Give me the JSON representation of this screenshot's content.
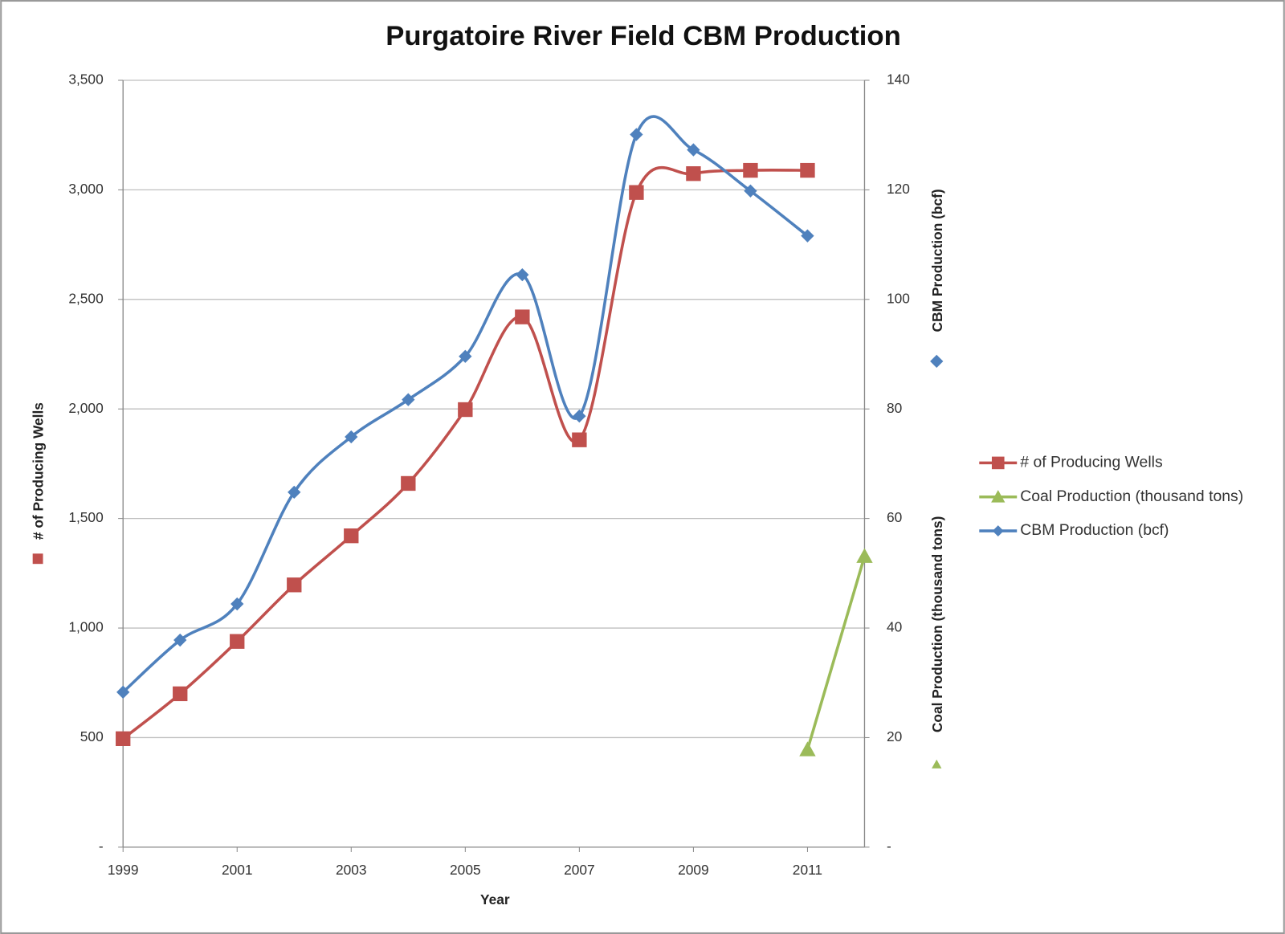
{
  "chart_data": {
    "type": "line",
    "title": "Purgatoire River Field CBM Production",
    "xlabel": "Year",
    "ylabel": "# of Producing Wells",
    "y2labels": [
      "CBM Production (bcf)",
      "Coal Production  (thousand tons)"
    ],
    "x": [
      1999,
      2000,
      2001,
      2002,
      2003,
      2004,
      2005,
      2006,
      2007,
      2008,
      2009,
      2010,
      2011,
      2012
    ],
    "xlim": [
      1999,
      2012
    ],
    "xticks": [
      1999,
      2001,
      2003,
      2005,
      2007,
      2009,
      2011
    ],
    "ylim": [
      0,
      3500
    ],
    "yticks": [
      {
        "value": 0,
        "label": "-"
      },
      500,
      {
        "value": 1000,
        "label": "1,000"
      },
      {
        "value": 1500,
        "label": "1,500"
      },
      {
        "value": 2000,
        "label": "2,000"
      },
      {
        "value": 2500,
        "label": "2,500"
      },
      {
        "value": 3000,
        "label": "3,000"
      },
      {
        "value": 3500,
        "label": "3,500"
      }
    ],
    "y2lim": [
      0,
      140
    ],
    "y2ticks": [
      {
        "value": 0,
        "label": "-"
      },
      20,
      40,
      60,
      80,
      100,
      120,
      140
    ],
    "grid": true,
    "legend": "right",
    "series": [
      {
        "name": "# of Producing Wells",
        "color": "#c0504d",
        "marker": "square",
        "smooth": true,
        "values": [
          495,
          700,
          939,
          1197,
          1421,
          1660,
          1997,
          2420,
          1859,
          2988,
          3074,
          3089,
          3089,
          null
        ]
      },
      {
        "name": "Coal Production (thousand tons)",
        "color": "#9bbb59",
        "marker": "triangle",
        "smooth": false,
        "axis": "y2",
        "values": [
          null,
          null,
          null,
          null,
          null,
          null,
          null,
          null,
          null,
          null,
          null,
          null,
          17.8,
          53.1
        ]
      },
      {
        "name": "CBM Production (bcf)",
        "color": "#4f81bd",
        "marker": "diamond",
        "smooth": true,
        "axis": "y2",
        "values": [
          28.3,
          37.8,
          44.4,
          64.8,
          74.9,
          81.7,
          89.6,
          104.5,
          78.7,
          130.1,
          127.3,
          119.8,
          111.6,
          null
        ]
      }
    ]
  }
}
